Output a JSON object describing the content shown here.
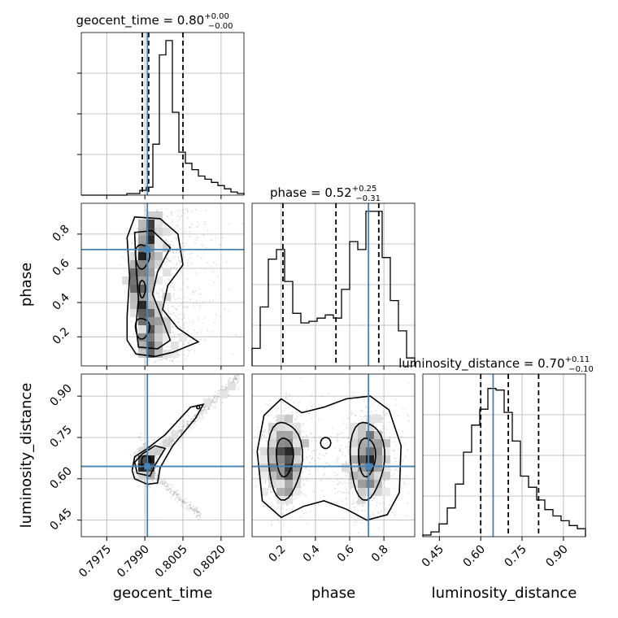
{
  "colors": {
    "truth": "#4682b4",
    "ink": "#000000",
    "grid": "#b0b0b0",
    "scatter": "#9a9a9a"
  },
  "chart_data": {
    "type": "corner",
    "parameters": [
      "geocent_time",
      "phase",
      "luminosity_distance"
    ],
    "labels": {
      "geocent_time": "geocent_time",
      "phase": "phase",
      "luminosity_distance": "luminosity_distance"
    },
    "ranges": {
      "geocent_time": [
        0.7965,
        0.8029
      ],
      "phase": [
        0.03,
        0.98
      ],
      "luminosity_distance": [
        0.39,
        0.98
      ]
    },
    "ticks": {
      "geocent_time": [
        "0.7975",
        "0.7990",
        "0.8005",
        "0.8020"
      ],
      "phase": [
        "0.2",
        "0.4",
        "0.6",
        "0.8"
      ],
      "luminosity_distance": [
        "0.45",
        "0.60",
        "0.75",
        "0.90"
      ]
    },
    "truths": {
      "geocent_time": 0.7991,
      "phase": 0.71,
      "luminosity_distance": 0.645
    },
    "titles": [
      {
        "param": "geocent_time",
        "text": "geocent_time = 0.80",
        "sup": "+0.00",
        "sub": "−0.00"
      },
      {
        "param": "phase",
        "text": "phase = 0.52",
        "sup": "+0.25",
        "sub": "−0.31"
      },
      {
        "param": "luminosity_distance",
        "text": "luminosity_distance = 0.70",
        "sup": "+0.11",
        "sub": "−0.10"
      }
    ],
    "quantiles": {
      "geocent_time": [
        0.7989,
        0.79915,
        0.8005
      ],
      "phase": [
        0.21,
        0.52,
        0.77
      ],
      "luminosity_distance": [
        0.6,
        0.7,
        0.81
      ]
    },
    "histograms": {
      "geocent_time": [
        0.0,
        0.0,
        0.0,
        0.0,
        0.0,
        0.0,
        0.0,
        0.01,
        0.01,
        0.03,
        0.05,
        0.32,
        0.88,
        0.97,
        0.52,
        0.27,
        0.2,
        0.16,
        0.12,
        0.1,
        0.08,
        0.06,
        0.04,
        0.02,
        0.01
      ],
      "phase": [
        0.11,
        0.37,
        0.67,
        0.73,
        0.53,
        0.33,
        0.27,
        0.28,
        0.3,
        0.32,
        0.3,
        0.48,
        0.78,
        0.73,
        0.97,
        0.97,
        0.68,
        0.41,
        0.22,
        0.05
      ],
      "luminosity_distance": [
        0.01,
        0.03,
        0.08,
        0.18,
        0.33,
        0.53,
        0.7,
        0.8,
        0.93,
        0.92,
        0.78,
        0.6,
        0.38,
        0.31,
        0.23,
        0.17,
        0.13,
        0.1,
        0.07,
        0.05
      ]
    }
  }
}
